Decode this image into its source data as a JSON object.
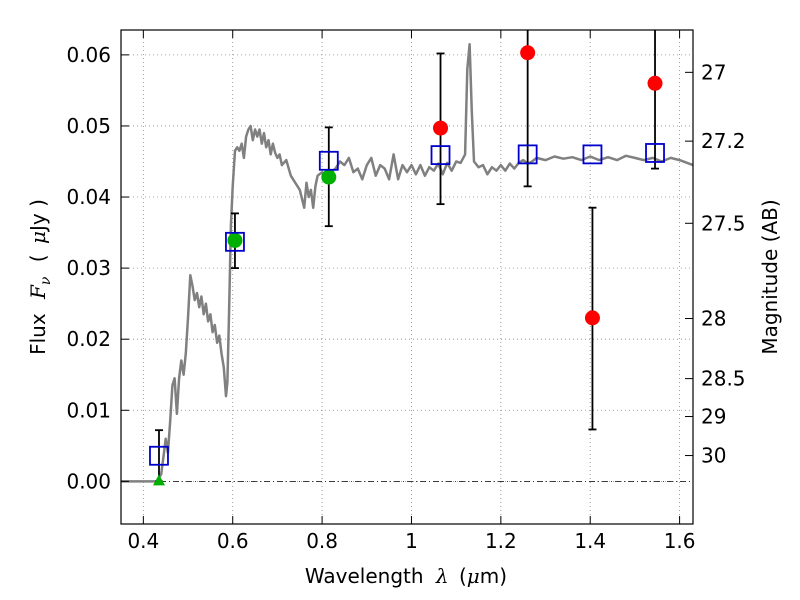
{
  "chart_data": {
    "type": "scatter",
    "xlabel": {
      "prefix": "Wavelength",
      "symbol": "λ",
      "unit_open": "(",
      "unit_mu": "μ",
      "unit_rest": "m)"
    },
    "ylabel": {
      "prefix": "Flux",
      "symbol": "F",
      "subscript": "ν",
      "unit_open": "(",
      "unit_mu": "μ",
      "unit_rest": "Jy )"
    },
    "right_ylabel": "Magnitude (AB)",
    "xlim": [
      0.35,
      1.63
    ],
    "ylim": [
      -0.006,
      0.0635
    ],
    "x_ticks": [
      0.4,
      0.6,
      0.8,
      1.0,
      1.2,
      1.4,
      1.6
    ],
    "x_tick_labels": [
      "0.4",
      "0.6",
      "0.8",
      "1",
      "1.2",
      "1.4",
      "1.6"
    ],
    "y_ticks": [
      0.0,
      0.01,
      0.02,
      0.03,
      0.04,
      0.05,
      0.06
    ],
    "y_tick_labels": [
      "0.00",
      "0.01",
      "0.02",
      "0.03",
      "0.04",
      "0.05",
      "0.06"
    ],
    "magnitude_ticks": [
      {
        "label": "27",
        "mag": 27.0
      },
      {
        "label": "27.2",
        "mag": 27.2
      },
      {
        "label": "27.5",
        "mag": 27.5
      },
      {
        "label": "28",
        "mag": 28.0
      },
      {
        "label": "28.5",
        "mag": 28.5
      },
      {
        "label": "29",
        "mag": 29.0
      },
      {
        "label": "30",
        "mag": 30.0
      }
    ],
    "grid": true,
    "zero_line": true,
    "colors": {
      "model": "#808080",
      "observed": "#ff0000",
      "detected": "#00b000",
      "model_photometry": "#0000cc",
      "error_bar": "#000000",
      "grid": "#888888"
    },
    "model_spectrum": [
      [
        0.35,
        0.0
      ],
      [
        0.43,
        0.0
      ],
      [
        0.44,
        0.001
      ],
      [
        0.445,
        0.0035
      ],
      [
        0.45,
        0.006
      ],
      [
        0.455,
        0.004
      ],
      [
        0.46,
        0.0085
      ],
      [
        0.465,
        0.0135
      ],
      [
        0.47,
        0.0145
      ],
      [
        0.475,
        0.0095
      ],
      [
        0.48,
        0.0145
      ],
      [
        0.485,
        0.017
      ],
      [
        0.49,
        0.015
      ],
      [
        0.495,
        0.018
      ],
      [
        0.5,
        0.023
      ],
      [
        0.505,
        0.029
      ],
      [
        0.51,
        0.0275
      ],
      [
        0.515,
        0.0255
      ],
      [
        0.52,
        0.0265
      ],
      [
        0.525,
        0.0245
      ],
      [
        0.53,
        0.026
      ],
      [
        0.535,
        0.0235
      ],
      [
        0.54,
        0.025
      ],
      [
        0.545,
        0.0225
      ],
      [
        0.55,
        0.0235
      ],
      [
        0.555,
        0.021
      ],
      [
        0.56,
        0.022
      ],
      [
        0.565,
        0.0195
      ],
      [
        0.57,
        0.0205
      ],
      [
        0.575,
        0.018
      ],
      [
        0.58,
        0.016
      ],
      [
        0.585,
        0.012
      ],
      [
        0.588,
        0.014
      ],
      [
        0.592,
        0.024
      ],
      [
        0.596,
        0.036
      ],
      [
        0.6,
        0.0415
      ],
      [
        0.605,
        0.0465
      ],
      [
        0.61,
        0.047
      ],
      [
        0.615,
        0.0465
      ],
      [
        0.62,
        0.0475
      ],
      [
        0.625,
        0.0455
      ],
      [
        0.63,
        0.0485
      ],
      [
        0.635,
        0.0495
      ],
      [
        0.64,
        0.05
      ],
      [
        0.645,
        0.048
      ],
      [
        0.65,
        0.0495
      ],
      [
        0.655,
        0.0485
      ],
      [
        0.66,
        0.0495
      ],
      [
        0.665,
        0.0475
      ],
      [
        0.67,
        0.049
      ],
      [
        0.675,
        0.047
      ],
      [
        0.68,
        0.048
      ],
      [
        0.685,
        0.046
      ],
      [
        0.69,
        0.0475
      ],
      [
        0.695,
        0.0462
      ],
      [
        0.7,
        0.0455
      ],
      [
        0.705,
        0.046
      ],
      [
        0.71,
        0.0445
      ],
      [
        0.72,
        0.0452
      ],
      [
        0.73,
        0.043
      ],
      [
        0.74,
        0.042
      ],
      [
        0.75,
        0.041
      ],
      [
        0.76,
        0.0385
      ],
      [
        0.765,
        0.042
      ],
      [
        0.77,
        0.04
      ],
      [
        0.775,
        0.041
      ],
      [
        0.78,
        0.0385
      ],
      [
        0.785,
        0.0415
      ],
      [
        0.79,
        0.043
      ],
      [
        0.8,
        0.0435
      ],
      [
        0.81,
        0.0425
      ],
      [
        0.82,
        0.0435
      ],
      [
        0.83,
        0.044
      ],
      [
        0.84,
        0.045
      ],
      [
        0.85,
        0.0445
      ],
      [
        0.86,
        0.0455
      ],
      [
        0.87,
        0.0435
      ],
      [
        0.88,
        0.044
      ],
      [
        0.89,
        0.0425
      ],
      [
        0.9,
        0.0445
      ],
      [
        0.91,
        0.0455
      ],
      [
        0.92,
        0.043
      ],
      [
        0.93,
        0.0445
      ],
      [
        0.94,
        0.044
      ],
      [
        0.95,
        0.0425
      ],
      [
        0.96,
        0.046
      ],
      [
        0.97,
        0.0425
      ],
      [
        0.98,
        0.0445
      ],
      [
        0.99,
        0.0435
      ],
      [
        1.0,
        0.0445
      ],
      [
        1.01,
        0.0432
      ],
      [
        1.02,
        0.0445
      ],
      [
        1.03,
        0.043
      ],
      [
        1.04,
        0.0442
      ],
      [
        1.05,
        0.0437
      ],
      [
        1.06,
        0.0447
      ],
      [
        1.07,
        0.0432
      ],
      [
        1.08,
        0.0448
      ],
      [
        1.09,
        0.0437
      ],
      [
        1.1,
        0.045
      ],
      [
        1.11,
        0.0448
      ],
      [
        1.12,
        0.046
      ],
      [
        1.125,
        0.058
      ],
      [
        1.13,
        0.0615
      ],
      [
        1.135,
        0.052
      ],
      [
        1.14,
        0.045
      ],
      [
        1.15,
        0.0442
      ],
      [
        1.16,
        0.0445
      ],
      [
        1.17,
        0.0432
      ],
      [
        1.18,
        0.0442
      ],
      [
        1.19,
        0.0437
      ],
      [
        1.2,
        0.0445
      ],
      [
        1.21,
        0.0437
      ],
      [
        1.22,
        0.0447
      ],
      [
        1.23,
        0.044
      ],
      [
        1.24,
        0.0448
      ],
      [
        1.25,
        0.0452
      ],
      [
        1.26,
        0.0447
      ],
      [
        1.27,
        0.045
      ],
      [
        1.28,
        0.0455
      ],
      [
        1.3,
        0.0452
      ],
      [
        1.32,
        0.0457
      ],
      [
        1.34,
        0.0454
      ],
      [
        1.36,
        0.0456
      ],
      [
        1.38,
        0.0452
      ],
      [
        1.4,
        0.0457
      ],
      [
        1.42,
        0.0452
      ],
      [
        1.44,
        0.0456
      ],
      [
        1.46,
        0.0452
      ],
      [
        1.48,
        0.0458
      ],
      [
        1.5,
        0.0455
      ],
      [
        1.52,
        0.0452
      ],
      [
        1.54,
        0.0455
      ],
      [
        1.56,
        0.045
      ],
      [
        1.58,
        0.0455
      ],
      [
        1.6,
        0.0452
      ],
      [
        1.63,
        0.0445
      ]
    ],
    "observed": [
      {
        "x": 1.065,
        "y": 0.0497,
        "err_low": 0.039,
        "err_high": 0.0602
      },
      {
        "x": 1.26,
        "y": 0.0603,
        "err_low": 0.0415,
        "err_high": 0.0635
      },
      {
        "x": 1.405,
        "y": 0.023,
        "err_low": 0.0073,
        "err_high": 0.0385
      },
      {
        "x": 1.545,
        "y": 0.056,
        "err_low": 0.044,
        "err_high": 0.0635
      }
    ],
    "detected": [
      {
        "x": 0.605,
        "y": 0.0339,
        "err_low": 0.03,
        "err_high": 0.0377
      },
      {
        "x": 0.815,
        "y": 0.0428,
        "err_low": 0.0359,
        "err_high": 0.0498
      }
    ],
    "upper_limits": [
      {
        "x": 0.435,
        "y": 0.0,
        "err_high": 0.0072
      }
    ],
    "model_photometry": [
      {
        "x": 0.435,
        "y": 0.0036
      },
      {
        "x": 0.605,
        "y": 0.0337
      },
      {
        "x": 0.815,
        "y": 0.0451
      },
      {
        "x": 1.065,
        "y": 0.0459
      },
      {
        "x": 1.26,
        "y": 0.046
      },
      {
        "x": 1.405,
        "y": 0.046
      },
      {
        "x": 1.545,
        "y": 0.0462
      }
    ]
  }
}
